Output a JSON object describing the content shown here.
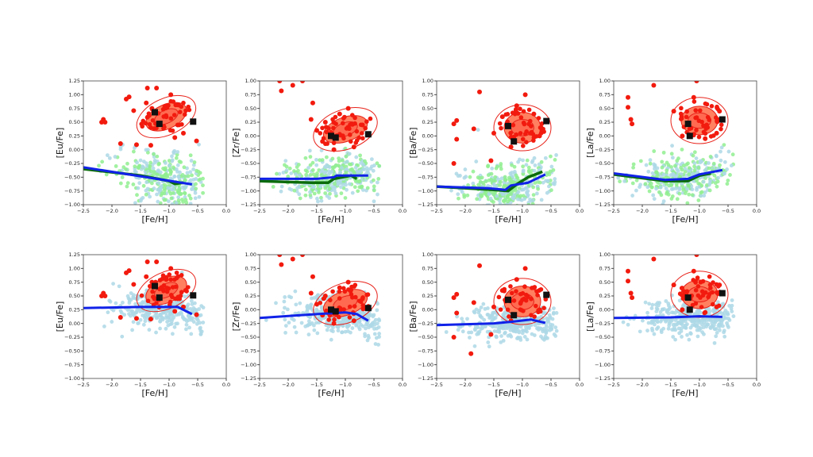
{
  "chart_data": [
    {
      "type": "scatter",
      "ylabel": "[Eu/Fe]",
      "xlabel": "[Fe/H]",
      "xlim": [
        -2.5,
        0.0
      ],
      "ylim": [
        -1.0,
        1.25
      ],
      "xticks": [
        "-2.5",
        "-2.0",
        "-1.5",
        "-1.0",
        "-0.5",
        "0.0"
      ],
      "yticks": [
        "-1.00",
        "-0.75",
        "-0.50",
        "-0.25",
        "0.00",
        "0.25",
        "0.50",
        "0.75",
        "1.00",
        "1.25"
      ],
      "cloud": {
        "colors": [
          "#add8e6",
          "#90ee90"
        ],
        "fe_range": [
          -2.5,
          -0.4
        ],
        "center_fe": -1.0,
        "spread": 0.2
      },
      "blue_line": [
        [
          -2.5,
          -0.32
        ],
        [
          -0.6,
          -0.63
        ]
      ],
      "green_line": [
        [
          -2.5,
          -0.35
        ],
        [
          -1.5,
          -0.47
        ],
        [
          -1.0,
          -0.57
        ],
        [
          -0.9,
          -0.62
        ],
        [
          -0.75,
          -0.6
        ]
      ],
      "red_points": [
        [
          -2.15,
          0.55
        ],
        [
          -2.18,
          0.5
        ],
        [
          -2.12,
          0.5
        ],
        [
          -1.75,
          0.92
        ],
        [
          -1.7,
          0.96
        ],
        [
          -1.62,
          0.71
        ],
        [
          -1.85,
          0.11
        ],
        [
          -1.57,
          0.09
        ],
        [
          -1.32,
          0.08
        ],
        [
          -1.38,
          1.12
        ],
        [
          -1.22,
          1.12
        ],
        [
          -0.97,
          1.0
        ],
        [
          -0.52,
          0.16
        ],
        [
          -0.9,
          0.22
        ],
        [
          -1.4,
          0.85
        ],
        [
          -0.75,
          0.3
        ],
        [
          -1.3,
          0.75
        ],
        [
          -1.05,
          0.8
        ],
        [
          -0.85,
          0.45
        ]
      ],
      "contour": {
        "center": [
          -1.05,
          0.6
        ],
        "radii": [
          [
            0.55,
            0.33
          ],
          [
            0.38,
            0.22
          ],
          [
            0.22,
            0.12
          ]
        ],
        "tilt": -25
      },
      "squares": [
        [
          -1.25,
          0.68
        ],
        [
          -1.17,
          0.47
        ],
        [
          -0.58,
          0.51
        ]
      ]
    },
    {
      "type": "scatter",
      "ylabel": "[Zr/Fe]",
      "xlabel": "[Fe/H]",
      "xlim": [
        -2.5,
        0.0
      ],
      "ylim": [
        -1.25,
        1.0
      ],
      "xticks": [
        "-2.5",
        "-2.0",
        "-1.5",
        "-1.0",
        "-0.5",
        "0.0"
      ],
      "yticks": [
        "-1.25",
        "-1.00",
        "-0.75",
        "-0.50",
        "-0.25",
        "0.00",
        "0.25",
        "0.50",
        "0.75",
        "1.00"
      ],
      "cloud": {
        "colors": [
          "#add8e6",
          "#90ee90"
        ],
        "fe_range": [
          -2.5,
          -0.4
        ],
        "center_fe": -1.2,
        "spread": 0.15
      },
      "blue_line": [
        [
          -2.5,
          -0.78
        ],
        [
          -1.5,
          -0.78
        ],
        [
          -1.2,
          -0.75
        ],
        [
          -1.15,
          -0.72
        ],
        [
          -0.6,
          -0.72
        ]
      ],
      "green_line": [
        [
          -2.5,
          -0.82
        ],
        [
          -1.6,
          -0.85
        ],
        [
          -1.3,
          -0.85
        ],
        [
          -1.2,
          -0.78
        ],
        [
          -0.9,
          -0.72
        ],
        [
          -0.8,
          -0.78
        ]
      ],
      "red_points": [
        [
          -2.15,
          1.0
        ],
        [
          -2.12,
          0.82
        ],
        [
          -1.92,
          0.92
        ],
        [
          -1.75,
          1.0
        ],
        [
          -1.57,
          0.6
        ],
        [
          -1.6,
          0.3
        ],
        [
          -1.5,
          0.1
        ],
        [
          -1.4,
          -0.1
        ],
        [
          -1.2,
          -0.25
        ],
        [
          -0.85,
          -0.2
        ],
        [
          -0.95,
          0.5
        ],
        [
          -0.7,
          0.2
        ],
        [
          -1.1,
          0.4
        ],
        [
          -1.35,
          0.25
        ]
      ],
      "contour": {
        "center": [
          -1.0,
          0.12
        ],
        "radii": [
          [
            0.58,
            0.36
          ],
          [
            0.4,
            0.22
          ],
          [
            0.22,
            0.12
          ]
        ],
        "tilt": -20
      },
      "squares": [
        [
          -1.25,
          0.0
        ],
        [
          -1.17,
          -0.03
        ],
        [
          -0.6,
          0.03
        ]
      ]
    },
    {
      "type": "scatter",
      "ylabel": "[Ba/Fe]",
      "xlabel": "[Fe/H]",
      "xlim": [
        -2.5,
        0.0
      ],
      "ylim": [
        -1.25,
        1.0
      ],
      "xticks": [
        "-2.5",
        "-2.0",
        "-1.5",
        "-1.0",
        "-0.5",
        "0.0"
      ],
      "yticks": [
        "-1.25",
        "-1.00",
        "-0.75",
        "-0.50",
        "-0.25",
        "0.00",
        "0.25",
        "0.50",
        "0.75",
        "1.00"
      ],
      "cloud": {
        "colors": [
          "#add8e6",
          "#90ee90"
        ],
        "fe_range": [
          -2.5,
          -0.4
        ],
        "center_fe": -1.2,
        "spread": 0.17
      },
      "blue_line": [
        [
          -2.5,
          -0.92
        ],
        [
          -1.6,
          -0.95
        ],
        [
          -1.3,
          -0.98
        ],
        [
          -1.2,
          -0.9
        ],
        [
          -0.9,
          -0.85
        ],
        [
          -0.6,
          -0.7
        ]
      ],
      "green_line": [
        [
          -2.5,
          -0.92
        ],
        [
          -1.5,
          -0.98
        ],
        [
          -1.25,
          -1.0
        ],
        [
          -1.1,
          -0.88
        ],
        [
          -0.9,
          -0.75
        ],
        [
          -0.65,
          -0.65
        ]
      ],
      "red_points": [
        [
          -1.75,
          0.8
        ],
        [
          -2.2,
          0.22
        ],
        [
          -2.15,
          0.28
        ],
        [
          -1.85,
          0.13
        ],
        [
          -2.15,
          -0.06
        ],
        [
          -2.2,
          -0.5
        ],
        [
          -1.55,
          -0.45
        ],
        [
          -0.95,
          0.75
        ],
        [
          -1.1,
          0.55
        ],
        [
          -1.5,
          0.05
        ],
        [
          -0.7,
          0.0
        ],
        [
          -1.2,
          -0.2
        ],
        [
          -0.8,
          0.4
        ],
        [
          -1.35,
          0.35
        ]
      ],
      "contour": {
        "center": [
          -1.0,
          0.15
        ],
        "radii": [
          [
            0.5,
            0.42
          ],
          [
            0.32,
            0.28
          ],
          [
            0.2,
            0.15
          ]
        ],
        "tilt": 0
      },
      "squares": [
        [
          -1.25,
          0.18
        ],
        [
          -1.15,
          -0.1
        ],
        [
          -0.58,
          0.27
        ]
      ]
    },
    {
      "type": "scatter",
      "ylabel": "[La/Fe]",
      "xlabel": "[Fe/H]",
      "xlim": [
        -2.5,
        0.0
      ],
      "ylim": [
        -1.25,
        1.0
      ],
      "xticks": [
        "-2.5",
        "-2.0",
        "-1.5",
        "-1.0",
        "-0.5",
        "0.0"
      ],
      "yticks": [
        "-1.25",
        "-1.00",
        "-0.75",
        "-0.50",
        "-0.25",
        "0.00",
        "0.25",
        "0.50",
        "0.75",
        "1.00"
      ],
      "cloud": {
        "colors": [
          "#add8e6",
          "#90ee90"
        ],
        "fe_range": [
          -2.5,
          -0.4
        ],
        "center_fe": -1.2,
        "spread": 0.15
      },
      "blue_line": [
        [
          -2.5,
          -0.68
        ],
        [
          -1.6,
          -0.8
        ],
        [
          -1.2,
          -0.78
        ],
        [
          -1.0,
          -0.7
        ],
        [
          -0.6,
          -0.62
        ]
      ],
      "green_line": [
        [
          -2.5,
          -0.7
        ],
        [
          -1.6,
          -0.82
        ],
        [
          -1.2,
          -0.82
        ],
        [
          -1.0,
          -0.72
        ],
        [
          -0.8,
          -0.68
        ]
      ],
      "red_points": [
        [
          -2.25,
          0.7
        ],
        [
          -2.25,
          0.52
        ],
        [
          -2.2,
          0.3
        ],
        [
          -2.18,
          0.22
        ],
        [
          -1.8,
          0.92
        ],
        [
          -1.05,
          1.0
        ],
        [
          -1.45,
          0.45
        ],
        [
          -0.7,
          0.05
        ],
        [
          -1.3,
          0.0
        ],
        [
          -0.65,
          0.45
        ],
        [
          -1.1,
          0.7
        ],
        [
          -0.9,
          -0.05
        ]
      ],
      "contour": {
        "center": [
          -1.0,
          0.28
        ],
        "radii": [
          [
            0.5,
            0.42
          ],
          [
            0.32,
            0.26
          ],
          [
            0.2,
            0.14
          ]
        ],
        "tilt": 0
      },
      "squares": [
        [
          -1.2,
          0.22
        ],
        [
          -1.17,
          0.0
        ],
        [
          -0.6,
          0.3
        ]
      ]
    },
    {
      "type": "scatter",
      "ylabel": "[Eu/Fe]",
      "xlabel": "[Fe/H]",
      "xlim": [
        -2.5,
        0.0
      ],
      "ylim": [
        -1.0,
        1.25
      ],
      "xticks": [
        "-2.5",
        "-2.0",
        "-1.5",
        "-1.0",
        "-0.5",
        "0.0"
      ],
      "yticks": [
        "-1.00",
        "-0.75",
        "-0.50",
        "-0.25",
        "0.00",
        "0.25",
        "0.50",
        "0.75",
        "1.00",
        "1.25"
      ],
      "cloud": {
        "colors": [
          "#add8e6"
        ],
        "fe_range": [
          -2.5,
          -0.4
        ],
        "center_fe": -1.1,
        "spread": 0.15
      },
      "blue_line": [
        [
          -2.5,
          0.28
        ],
        [
          -1.5,
          0.3
        ],
        [
          -0.85,
          0.3
        ],
        [
          -0.6,
          0.17
        ]
      ],
      "red_points": [
        [
          -2.15,
          0.55
        ],
        [
          -2.18,
          0.5
        ],
        [
          -2.12,
          0.5
        ],
        [
          -1.75,
          0.92
        ],
        [
          -1.7,
          0.96
        ],
        [
          -1.62,
          0.71
        ],
        [
          -1.85,
          0.11
        ],
        [
          -1.57,
          0.09
        ],
        [
          -1.32,
          0.08
        ],
        [
          -1.38,
          1.12
        ],
        [
          -1.22,
          1.12
        ],
        [
          -0.97,
          1.0
        ],
        [
          -0.52,
          0.16
        ],
        [
          -0.9,
          0.22
        ],
        [
          -1.4,
          0.85
        ],
        [
          -0.75,
          0.3
        ],
        [
          -1.3,
          0.75
        ],
        [
          -1.05,
          0.8
        ],
        [
          -0.85,
          0.45
        ]
      ],
      "contour": {
        "center": [
          -1.05,
          0.6
        ],
        "radii": [
          [
            0.55,
            0.33
          ],
          [
            0.38,
            0.22
          ],
          [
            0.22,
            0.12
          ]
        ],
        "tilt": -25
      },
      "squares": [
        [
          -1.25,
          0.68
        ],
        [
          -1.17,
          0.47
        ],
        [
          -0.58,
          0.51
        ]
      ]
    },
    {
      "type": "scatter",
      "ylabel": "[Zr/Fe]",
      "xlabel": "[Fe/H]",
      "xlim": [
        -2.5,
        0.0
      ],
      "ylim": [
        -1.25,
        1.0
      ],
      "xticks": [
        "-2.5",
        "-2.0",
        "-1.5",
        "-1.0",
        "-0.5",
        "0.0"
      ],
      "yticks": [
        "-1.25",
        "-1.00",
        "-0.75",
        "-0.50",
        "-0.25",
        "0.00",
        "0.25",
        "0.50",
        "0.75",
        "1.00"
      ],
      "cloud": {
        "colors": [
          "#add8e6"
        ],
        "fe_range": [
          -2.5,
          -0.4
        ],
        "center_fe": -1.1,
        "spread": 0.15
      },
      "blue_line": [
        [
          -2.5,
          -0.15
        ],
        [
          -1.5,
          -0.08
        ],
        [
          -1.0,
          -0.05
        ],
        [
          -0.8,
          -0.08
        ],
        [
          -0.6,
          -0.2
        ]
      ],
      "red_points": [
        [
          -2.15,
          1.0
        ],
        [
          -2.12,
          0.82
        ],
        [
          -1.92,
          0.92
        ],
        [
          -1.75,
          1.0
        ],
        [
          -1.57,
          0.6
        ],
        [
          -1.6,
          0.3
        ],
        [
          -1.5,
          0.1
        ],
        [
          -1.4,
          -0.1
        ],
        [
          -1.2,
          -0.25
        ],
        [
          -0.85,
          -0.2
        ],
        [
          -0.95,
          0.5
        ],
        [
          -0.7,
          0.2
        ],
        [
          -1.1,
          0.4
        ],
        [
          -1.35,
          0.25
        ]
      ],
      "contour": {
        "center": [
          -1.0,
          0.12
        ],
        "radii": [
          [
            0.58,
            0.36
          ],
          [
            0.4,
            0.22
          ],
          [
            0.22,
            0.12
          ]
        ],
        "tilt": -20
      },
      "squares": [
        [
          -1.25,
          0.0
        ],
        [
          -1.17,
          -0.03
        ],
        [
          -0.6,
          0.03
        ]
      ]
    },
    {
      "type": "scatter",
      "ylabel": "[Ba/Fe]",
      "xlabel": "[Fe/H]",
      "xlim": [
        -2.5,
        0.0
      ],
      "ylim": [
        -1.25,
        1.0
      ],
      "xticks": [
        "-2.5",
        "-2.0",
        "-1.5",
        "-1.0",
        "-0.5",
        "0.0"
      ],
      "yticks": [
        "-1.25",
        "-1.00",
        "-0.75",
        "-0.50",
        "-0.25",
        "0.00",
        "0.25",
        "0.50",
        "0.75",
        "1.00"
      ],
      "cloud": {
        "colors": [
          "#add8e6"
        ],
        "fe_range": [
          -2.5,
          -0.4
        ],
        "center_fe": -1.1,
        "spread": 0.13
      },
      "blue_line": [
        [
          -2.5,
          -0.28
        ],
        [
          -1.5,
          -0.25
        ],
        [
          -1.2,
          -0.22
        ],
        [
          -0.85,
          -0.18
        ],
        [
          -0.6,
          -0.24
        ]
      ],
      "red_points": [
        [
          -1.75,
          0.8
        ],
        [
          -2.2,
          0.22
        ],
        [
          -2.15,
          0.28
        ],
        [
          -1.85,
          0.13
        ],
        [
          -2.15,
          -0.06
        ],
        [
          -2.2,
          -0.5
        ],
        [
          -1.55,
          -0.45
        ],
        [
          -1.9,
          -0.8
        ],
        [
          -0.95,
          0.75
        ],
        [
          -1.1,
          0.55
        ],
        [
          -1.5,
          0.05
        ],
        [
          -0.7,
          0.0
        ],
        [
          -1.2,
          -0.2
        ],
        [
          -0.8,
          0.4
        ],
        [
          -1.35,
          0.35
        ]
      ],
      "contour": {
        "center": [
          -1.0,
          0.15
        ],
        "radii": [
          [
            0.5,
            0.42
          ],
          [
            0.32,
            0.28
          ],
          [
            0.2,
            0.15
          ]
        ],
        "tilt": 0
      },
      "squares": [
        [
          -1.25,
          0.18
        ],
        [
          -1.15,
          -0.1
        ],
        [
          -0.58,
          0.27
        ]
      ]
    },
    {
      "type": "scatter",
      "ylabel": "[La/Fe]",
      "xlabel": "[Fe/H]",
      "xlim": [
        -2.5,
        0.0
      ],
      "ylim": [
        -1.25,
        1.0
      ],
      "xticks": [
        "-2.5",
        "-2.0",
        "-1.5",
        "-1.0",
        "-0.5",
        "0.0"
      ],
      "yticks": [
        "-1.25",
        "-1.00",
        "-0.75",
        "-0.50",
        "-0.25",
        "0.00",
        "0.25",
        "0.50",
        "0.75",
        "1.00"
      ],
      "cloud": {
        "colors": [
          "#add8e6"
        ],
        "fe_range": [
          -2.5,
          -0.4
        ],
        "center_fe": -1.1,
        "spread": 0.12
      },
      "blue_line": [
        [
          -2.5,
          -0.15
        ],
        [
          -1.5,
          -0.14
        ],
        [
          -1.0,
          -0.12
        ],
        [
          -0.6,
          -0.13
        ]
      ],
      "red_points": [
        [
          -2.25,
          0.7
        ],
        [
          -2.25,
          0.52
        ],
        [
          -2.2,
          0.3
        ],
        [
          -2.18,
          0.22
        ],
        [
          -1.8,
          0.92
        ],
        [
          -1.05,
          1.0
        ],
        [
          -1.45,
          0.45
        ],
        [
          -0.7,
          0.05
        ],
        [
          -1.3,
          0.0
        ],
        [
          -0.65,
          0.45
        ],
        [
          -1.1,
          0.7
        ],
        [
          -0.9,
          -0.05
        ]
      ],
      "contour": {
        "center": [
          -1.0,
          0.28
        ],
        "radii": [
          [
            0.5,
            0.42
          ],
          [
            0.32,
            0.26
          ],
          [
            0.2,
            0.14
          ]
        ],
        "tilt": 0
      },
      "squares": [
        [
          -1.2,
          0.22
        ],
        [
          -1.17,
          0.0
        ],
        [
          -0.6,
          0.3
        ]
      ]
    }
  ]
}
